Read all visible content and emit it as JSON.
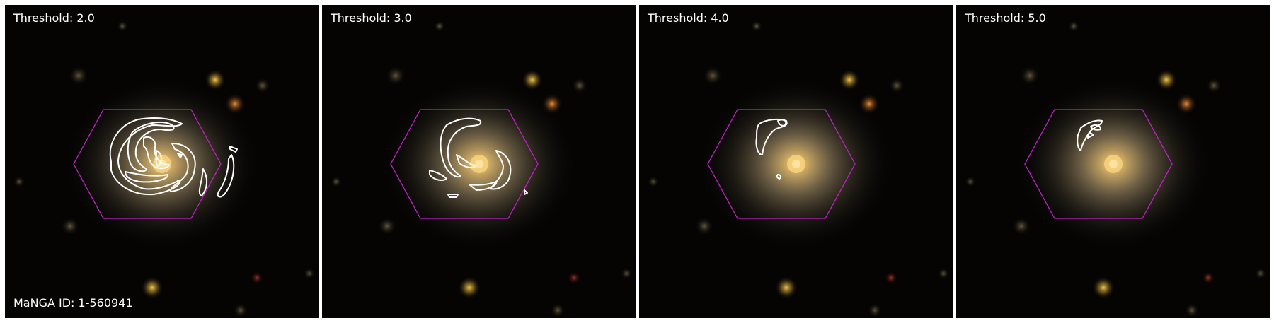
{
  "panels": [
    {
      "threshold_label": "Threshold: 2.0",
      "id_label": "MaNGA ID: 1-560941"
    },
    {
      "threshold_label": "Threshold: 3.0"
    },
    {
      "threshold_label": "Threshold: 4.0"
    },
    {
      "threshold_label": "Threshold: 5.0"
    }
  ],
  "colors": {
    "background": "#050403",
    "galaxy_core": "#f2c46a",
    "hexagon": "#c021c8",
    "contours": "#ffffff"
  }
}
